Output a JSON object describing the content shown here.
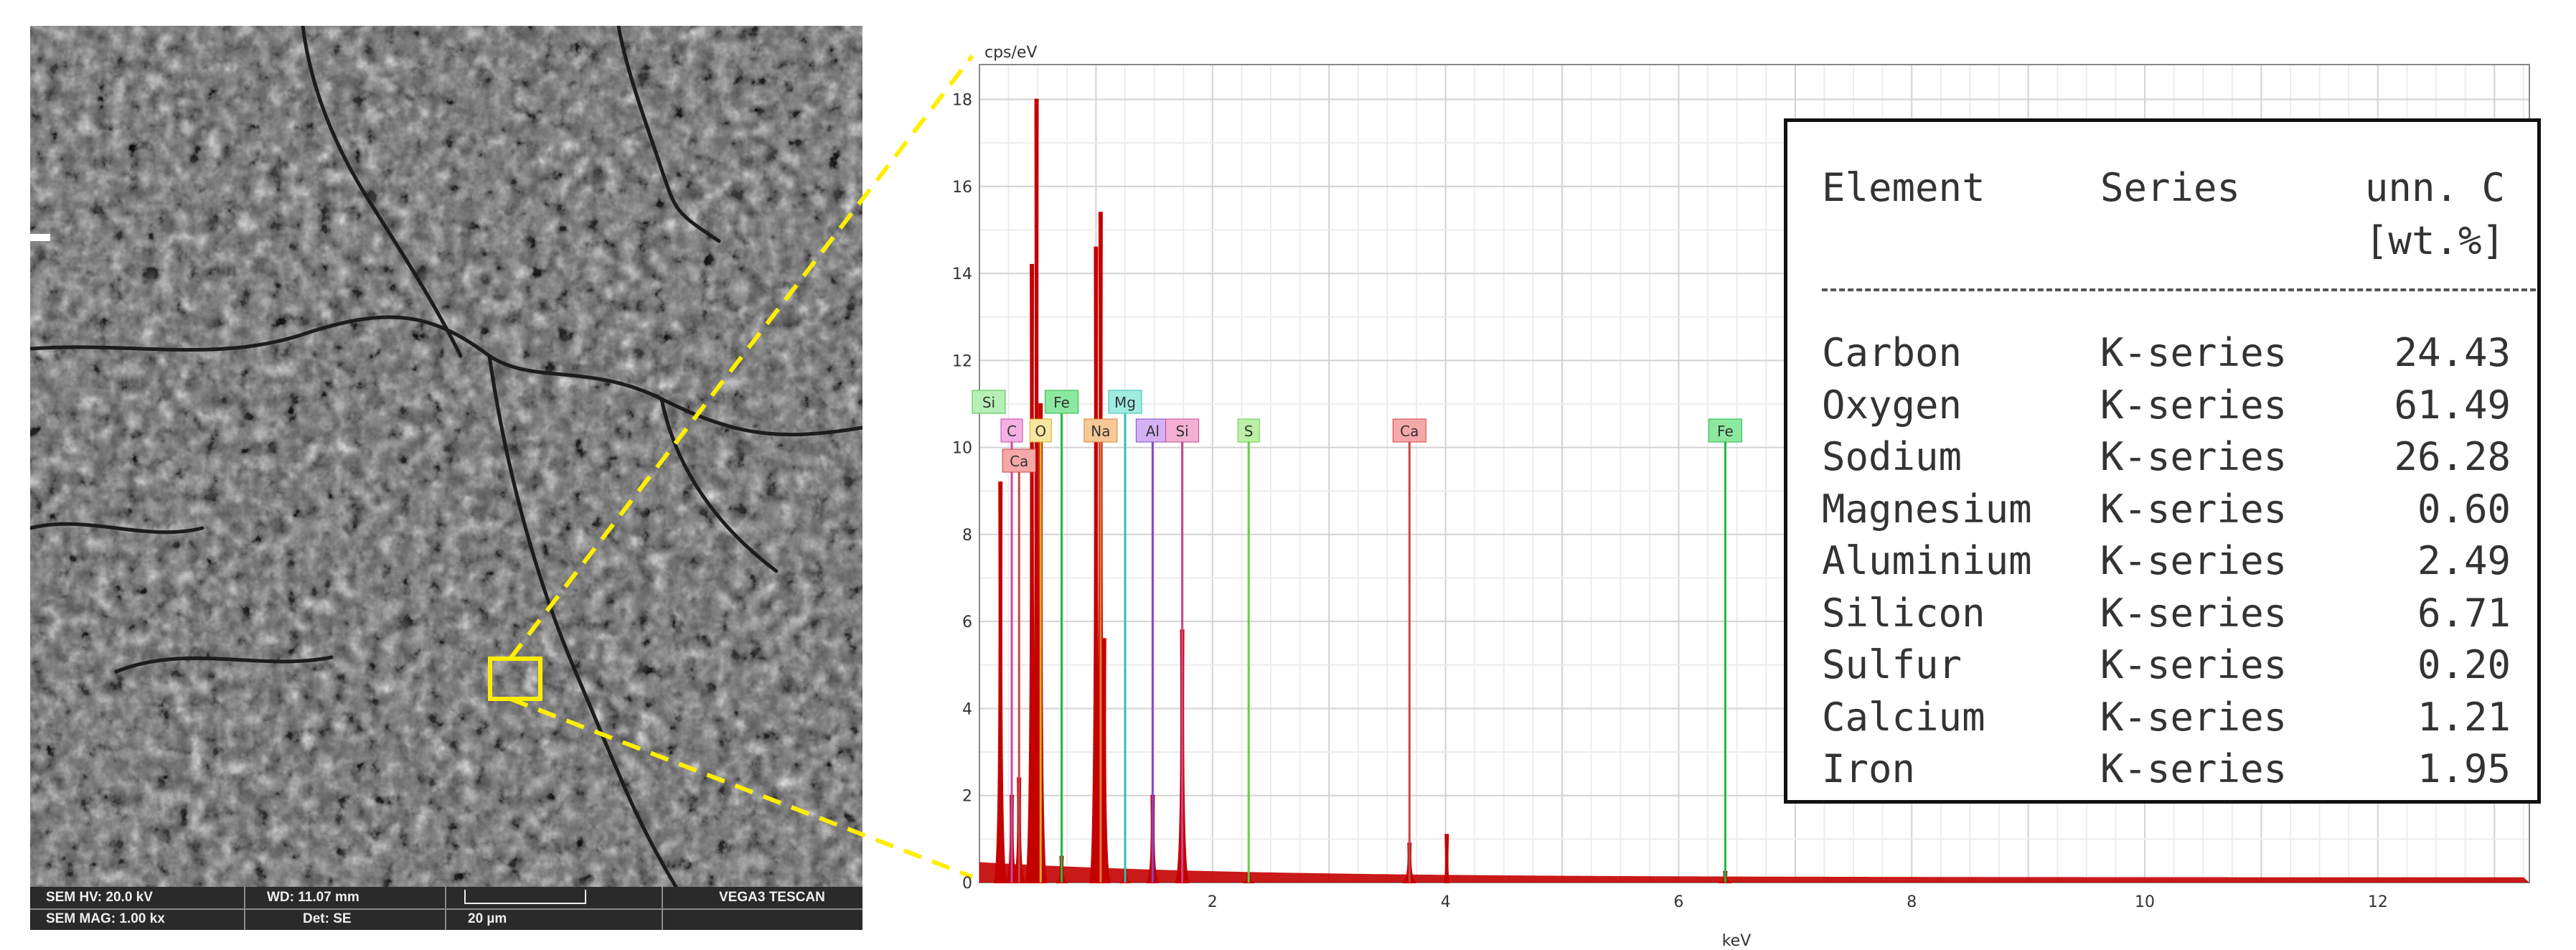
{
  "sem": {
    "hv": "SEM HV: 20.0 kV",
    "wd": "WD: 11.07 mm",
    "brand": "VEGA3 TESCAN",
    "mag": "SEM MAG: 1.00 kx",
    "det": "Det: SE",
    "scale": "20 µm"
  },
  "chart_data": {
    "type": "line",
    "ylabel": "cps/eV",
    "xlabel": "keV",
    "xlim": [
      0,
      13.3
    ],
    "ylim": [
      0,
      18.8
    ],
    "x_ticks": [
      "2",
      "4",
      "6",
      "8",
      "10",
      "12"
    ],
    "y_ticks": [
      "0",
      "2",
      "4",
      "6",
      "8",
      "10",
      "12",
      "14",
      "16",
      "18"
    ],
    "grid": true,
    "spectrum_color": "#c40000",
    "peaks": [
      {
        "x": 0.18,
        "y": 9.2,
        "w": 0.022
      },
      {
        "x": 0.277,
        "y": 2.0,
        "w": 0.022
      },
      {
        "x": 0.34,
        "y": 2.4,
        "w": 0.022
      },
      {
        "x": 0.45,
        "y": 14.2,
        "w": 0.022
      },
      {
        "x": 0.49,
        "y": 18.0,
        "w": 0.022
      },
      {
        "x": 0.525,
        "y": 11.0,
        "w": 0.022
      },
      {
        "x": 0.705,
        "y": 0.6,
        "w": 0.02
      },
      {
        "x": 1.0,
        "y": 14.6,
        "w": 0.022
      },
      {
        "x": 1.04,
        "y": 15.4,
        "w": 0.022
      },
      {
        "x": 1.07,
        "y": 5.6,
        "w": 0.022
      },
      {
        "x": 1.25,
        "y": 0.3,
        "w": 0.02
      },
      {
        "x": 1.486,
        "y": 2.0,
        "w": 0.022
      },
      {
        "x": 1.74,
        "y": 5.8,
        "w": 0.024
      },
      {
        "x": 2.31,
        "y": 0.2,
        "w": 0.02
      },
      {
        "x": 3.69,
        "y": 0.9,
        "w": 0.024
      },
      {
        "x": 4.01,
        "y": 1.1,
        "w": 0.01
      },
      {
        "x": 6.4,
        "y": 0.25,
        "w": 0.022
      }
    ],
    "markers": [
      {
        "label": "Si",
        "x": 0.08,
        "tier": 0,
        "color": "#44c044",
        "bg": "#b6f0b6",
        "line": false
      },
      {
        "label": "C",
        "x": 0.277,
        "tier": 1,
        "color": "#cc44aa",
        "bg": "#f4b0e4",
        "line": true
      },
      {
        "label": "Ca",
        "x": 0.34,
        "tier": 2,
        "color": "#cc4444",
        "bg": "#f6a8a8",
        "line": true
      },
      {
        "label": "O",
        "x": 0.525,
        "tier": 1,
        "color": "#d8b020",
        "bg": "#f8e6a0",
        "line": true
      },
      {
        "label": "Fe",
        "x": 0.705,
        "tier": 0,
        "color": "#22b844",
        "bg": "#8ce8a0",
        "line": true
      },
      {
        "label": "Na",
        "x": 1.04,
        "tier": 1,
        "color": "#e07a30",
        "bg": "#f8c898",
        "line": true
      },
      {
        "label": "Mg",
        "x": 1.25,
        "tier": 0,
        "color": "#30c0b0",
        "bg": "#a0ece0",
        "line": true
      },
      {
        "label": "Al",
        "x": 1.486,
        "tier": 1,
        "color": "#8844cc",
        "bg": "#d4b0f4",
        "line": true
      },
      {
        "label": "Si",
        "x": 1.74,
        "tier": 1,
        "color": "#cc4488",
        "bg": "#f4b0d4",
        "line": true
      },
      {
        "label": "S",
        "x": 2.31,
        "tier": 1,
        "color": "#66cc44",
        "bg": "#bcf0a8",
        "line": true
      },
      {
        "label": "Ca",
        "x": 3.69,
        "tier": 1,
        "color": "#cc4444",
        "bg": "#f6a8a8",
        "line": true
      },
      {
        "label": "Fe",
        "x": 6.4,
        "tier": 1,
        "color": "#22b844",
        "bg": "#8ce8a0",
        "line": true
      }
    ]
  },
  "table": {
    "h_element": "Element",
    "h_series": "Series",
    "h_unn": "unn. C",
    "h_wt": "[wt.%]",
    "rows": [
      {
        "element": "Carbon",
        "series": "K-series",
        "value": "24.43"
      },
      {
        "element": "Oxygen",
        "series": "K-series",
        "value": "61.49"
      },
      {
        "element": "Sodium",
        "series": "K-series",
        "value": "26.28"
      },
      {
        "element": "Magnesium",
        "series": "K-series",
        "value": "0.60"
      },
      {
        "element": "Aluminium",
        "series": "K-series",
        "value": "2.49"
      },
      {
        "element": "Silicon",
        "series": "K-series",
        "value": "6.71"
      },
      {
        "element": "Sulfur",
        "series": "K-series",
        "value": "0.20"
      },
      {
        "element": "Calcium",
        "series": "K-series",
        "value": "1.21"
      },
      {
        "element": "Iron",
        "series": "K-series",
        "value": "1.95"
      }
    ]
  }
}
